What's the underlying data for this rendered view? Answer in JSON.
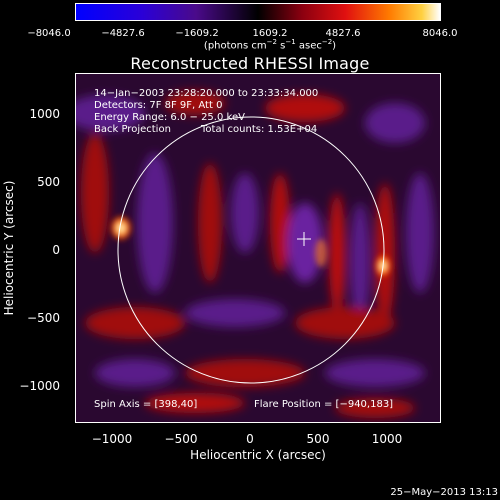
{
  "colorbar": {
    "ticks": [
      "−8046.0",
      "−4827.6",
      "−1609.2",
      "1609.2",
      "4827.6",
      "8046.0"
    ],
    "units_text": "(photons cm",
    "units_exp1": "−2",
    "units_mid": " s",
    "units_exp2": "−1",
    "units_end": " asec",
    "units_exp3": "−2",
    "units_close": ")"
  },
  "title": "Reconstructed RHESSI Image",
  "annotations": {
    "line1": "14−Jan−2003 23:28:20.000 to 23:33:34.000",
    "line2": "Detectors: 7F 8F 9F, Att 0",
    "line3": "Energy Range: 6.0 − 25.0 keV",
    "line4_left": "Back Projection",
    "line4_right": "Total counts: 1.53E+04",
    "spin_axis": "Spin Axis = [398,40]",
    "flare_position": "Flare Position = [−940,183]"
  },
  "axes": {
    "xlabel": "Heliocentric X (arcsec)",
    "ylabel": "Heliocentric Y (arcsec)",
    "xticks": [
      "−1000",
      "−500",
      "0",
      "500",
      "1000"
    ],
    "yticks": [
      "1000",
      "500",
      "0",
      "−500",
      "−1000"
    ]
  },
  "footer": {
    "timestamp": "25−May−2013 13:13"
  },
  "colors": {
    "background": "#000000",
    "foreground": "#ffffff"
  }
}
